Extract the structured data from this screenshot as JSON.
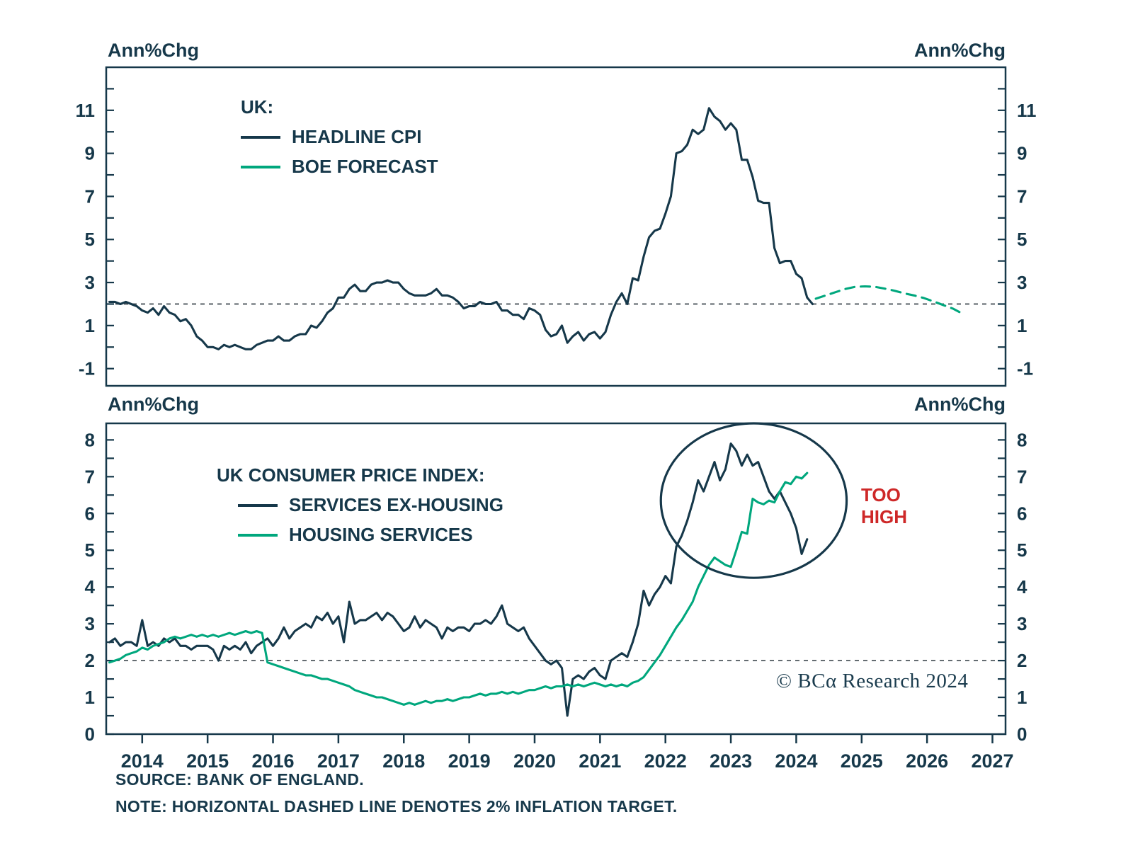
{
  "colors": {
    "navy": "#16384a",
    "green": "#00a77d",
    "red": "#ce2828",
    "target_dash": "#4d565c"
  },
  "footer": {
    "source": "SOURCE: BANK OF ENGLAND.",
    "note": "NOTE: HORIZONTAL DASHED LINE DENOTES 2% INFLATION TARGET."
  },
  "copyright": "© BCα Research 2024",
  "chart_data": [
    {
      "type": "line",
      "title": "UK:",
      "unit_label": "Ann%Chg",
      "xlim": [
        2013.45,
        2027.2
      ],
      "ylim": [
        -1.8,
        13.0
      ],
      "ytick_labels": [
        11,
        9,
        7,
        5,
        3,
        1,
        -1
      ],
      "ytick_minor_step": 1,
      "xticks": [
        2014,
        2015,
        2016,
        2017,
        2018,
        2019,
        2020,
        2021,
        2022,
        2023,
        2024,
        2025,
        2026,
        2027
      ],
      "target_line": 2,
      "grid": false,
      "legend_position": "top-left-inside",
      "legend": [
        {
          "label": "HEADLINE CPI",
          "color": "navy"
        },
        {
          "label": "BOE FORECAST",
          "color": "green"
        }
      ],
      "series": [
        {
          "id": "headline-cpi",
          "name": "HEADLINE CPI",
          "color": "navy",
          "style": "solid",
          "x0": 2013.5,
          "dx": 0.0833333,
          "values": [
            2.1,
            2.1,
            2.0,
            2.1,
            2.0,
            1.9,
            1.7,
            1.6,
            1.8,
            1.5,
            1.9,
            1.6,
            1.5,
            1.2,
            1.3,
            1.0,
            0.5,
            0.3,
            0.0,
            0.0,
            -0.1,
            0.1,
            0.0,
            0.1,
            0.0,
            -0.1,
            -0.1,
            0.1,
            0.2,
            0.3,
            0.3,
            0.5,
            0.3,
            0.3,
            0.5,
            0.6,
            0.6,
            1.0,
            0.9,
            1.2,
            1.6,
            1.8,
            2.3,
            2.3,
            2.7,
            2.9,
            2.6,
            2.6,
            2.9,
            3.0,
            3.0,
            3.1,
            3.0,
            3.0,
            2.7,
            2.5,
            2.4,
            2.4,
            2.4,
            2.5,
            2.7,
            2.4,
            2.4,
            2.3,
            2.1,
            1.8,
            1.9,
            1.9,
            2.1,
            2.0,
            2.0,
            2.1,
            1.7,
            1.7,
            1.5,
            1.5,
            1.3,
            1.8,
            1.7,
            1.5,
            0.8,
            0.5,
            0.6,
            1.0,
            0.2,
            0.5,
            0.7,
            0.3,
            0.6,
            0.7,
            0.4,
            0.7,
            1.5,
            2.1,
            2.5,
            2.0,
            3.2,
            3.1,
            4.2,
            5.1,
            5.4,
            5.5,
            6.2,
            7.0,
            9.0,
            9.1,
            9.4,
            10.1,
            9.9,
            10.1,
            11.1,
            10.7,
            10.5,
            10.1,
            10.4,
            10.1,
            8.7,
            8.7,
            7.9,
            6.8,
            6.7,
            6.7,
            4.6,
            3.9,
            4.0,
            4.0,
            3.4,
            3.2,
            2.3,
            2.0
          ]
        },
        {
          "id": "boe-forecast",
          "name": "BOE FORECAST",
          "color": "green",
          "style": "dashed",
          "points": [
            [
              2024.3,
              2.25
            ],
            [
              2024.45,
              2.4
            ],
            [
              2024.6,
              2.55
            ],
            [
              2024.75,
              2.7
            ],
            [
              2024.9,
              2.8
            ],
            [
              2025.05,
              2.82
            ],
            [
              2025.2,
              2.8
            ],
            [
              2025.35,
              2.72
            ],
            [
              2025.5,
              2.62
            ],
            [
              2025.65,
              2.5
            ],
            [
              2025.8,
              2.4
            ],
            [
              2025.95,
              2.28
            ],
            [
              2026.1,
              2.12
            ],
            [
              2026.25,
              1.95
            ],
            [
              2026.4,
              1.78
            ],
            [
              2026.5,
              1.62
            ]
          ]
        }
      ]
    },
    {
      "type": "line",
      "title": "UK CONSUMER PRICE INDEX:",
      "unit_label": "Ann%Chg",
      "xlim": [
        2013.45,
        2027.2
      ],
      "ylim": [
        0,
        8.45
      ],
      "ytick_labels": [
        8,
        7,
        6,
        5,
        4,
        3,
        2,
        1,
        0
      ],
      "ytick_minor_step": 0.5,
      "xticks": [
        2014,
        2015,
        2016,
        2017,
        2018,
        2019,
        2020,
        2021,
        2022,
        2023,
        2024,
        2025,
        2026,
        2027
      ],
      "target_line": 2,
      "grid": false,
      "legend_position": "top-left-inside",
      "legend": [
        {
          "label": "SERVICES EX-HOUSING",
          "color": "navy"
        },
        {
          "label": "HOUSING SERVICES",
          "color": "green"
        }
      ],
      "annotations": {
        "ellipse": {
          "cx": 2023.35,
          "cy": 6.35,
          "rx": 1.42,
          "ry": 2.1
        },
        "too_high": {
          "text": "TOO HIGH",
          "x": 2025.0,
          "y": 6.3
        }
      },
      "series": [
        {
          "id": "services-ex-housing",
          "name": "SERVICES EX-HOUSING",
          "color": "navy",
          "style": "solid",
          "x0": 2013.5,
          "dx": 0.0833333,
          "values": [
            2.5,
            2.6,
            2.4,
            2.5,
            2.5,
            2.4,
            3.1,
            2.4,
            2.5,
            2.4,
            2.6,
            2.5,
            2.6,
            2.4,
            2.4,
            2.3,
            2.4,
            2.4,
            2.4,
            2.3,
            2.0,
            2.4,
            2.3,
            2.4,
            2.3,
            2.5,
            2.2,
            2.4,
            2.5,
            2.6,
            2.4,
            2.6,
            2.9,
            2.6,
            2.8,
            2.9,
            3.0,
            2.9,
            3.2,
            3.1,
            3.3,
            3.0,
            3.2,
            2.5,
            3.6,
            3.0,
            3.1,
            3.1,
            3.2,
            3.3,
            3.1,
            3.3,
            3.2,
            3.0,
            2.8,
            2.9,
            3.2,
            2.9,
            3.1,
            3.0,
            2.9,
            2.6,
            2.9,
            2.8,
            2.9,
            2.9,
            2.8,
            3.0,
            3.0,
            3.1,
            3.0,
            3.2,
            3.5,
            3.0,
            2.9,
            2.8,
            2.9,
            2.6,
            2.4,
            2.2,
            2.0,
            1.9,
            2.0,
            1.8,
            0.5,
            1.5,
            1.6,
            1.5,
            1.7,
            1.8,
            1.6,
            1.5,
            2.0,
            2.1,
            2.2,
            2.1,
            2.5,
            3.0,
            3.9,
            3.5,
            3.8,
            4.0,
            4.3,
            4.1,
            5.1,
            5.4,
            5.8,
            6.3,
            6.9,
            6.6,
            7.0,
            7.4,
            6.9,
            7.2,
            7.9,
            7.7,
            7.3,
            7.6,
            7.3,
            7.4,
            7.0,
            6.6,
            6.4,
            6.6,
            6.3,
            6.0,
            5.6,
            4.9,
            5.3
          ]
        },
        {
          "id": "housing-services",
          "name": "HOUSING SERVICES",
          "color": "green",
          "style": "solid",
          "x0": 2013.5,
          "dx": 0.0833333,
          "values": [
            1.95,
            2.0,
            2.05,
            2.15,
            2.2,
            2.25,
            2.35,
            2.3,
            2.4,
            2.45,
            2.5,
            2.6,
            2.65,
            2.6,
            2.65,
            2.7,
            2.65,
            2.7,
            2.65,
            2.7,
            2.65,
            2.7,
            2.75,
            2.7,
            2.75,
            2.8,
            2.75,
            2.8,
            2.75,
            1.95,
            1.9,
            1.85,
            1.8,
            1.75,
            1.7,
            1.65,
            1.6,
            1.6,
            1.55,
            1.5,
            1.5,
            1.45,
            1.4,
            1.35,
            1.3,
            1.2,
            1.15,
            1.1,
            1.05,
            1.0,
            1.0,
            0.95,
            0.9,
            0.85,
            0.8,
            0.85,
            0.8,
            0.85,
            0.9,
            0.85,
            0.9,
            0.9,
            0.95,
            0.9,
            0.95,
            1.0,
            1.0,
            1.05,
            1.1,
            1.05,
            1.1,
            1.1,
            1.15,
            1.1,
            1.15,
            1.1,
            1.15,
            1.2,
            1.2,
            1.25,
            1.3,
            1.25,
            1.3,
            1.3,
            1.35,
            1.3,
            1.35,
            1.3,
            1.35,
            1.4,
            1.35,
            1.3,
            1.35,
            1.3,
            1.35,
            1.3,
            1.4,
            1.45,
            1.55,
            1.75,
            1.95,
            2.15,
            2.4,
            2.65,
            2.9,
            3.1,
            3.35,
            3.6,
            4.0,
            4.3,
            4.6,
            4.8,
            4.7,
            4.6,
            4.55,
            5.0,
            5.5,
            5.45,
            6.4,
            6.3,
            6.25,
            6.35,
            6.3,
            6.6,
            6.85,
            6.8,
            7.0,
            6.95,
            7.1
          ]
        }
      ]
    }
  ]
}
